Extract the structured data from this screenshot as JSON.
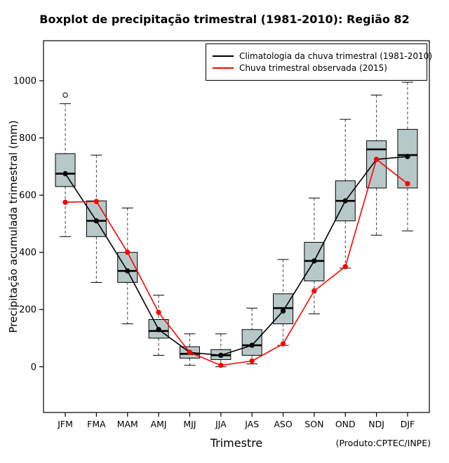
{
  "chart_data": {
    "type": "boxplot",
    "title": "Boxplot de precipitação trimestral (1981-2010): Região 82",
    "xlabel": "Trimestre",
    "ylabel": "Precipitação acumulada trimestral (mm)",
    "note": "(Produto:CPTEC/INPE)",
    "categories": [
      "JFM",
      "FMA",
      "MAM",
      "AMJ",
      "MJJ",
      "JJA",
      "JAS",
      "ASO",
      "SON",
      "OND",
      "NDJ",
      "DJF"
    ],
    "yticks": [
      0,
      200,
      400,
      600,
      800,
      1000
    ],
    "ylim": [
      -160,
      1140
    ],
    "box_fill": "#b7c8c8",
    "grid": false,
    "legend_position": "top-right",
    "boxes": [
      {
        "low": 455,
        "q1": 630,
        "median": 675,
        "q3": 745,
        "high": 920,
        "outliers": [
          950
        ]
      },
      {
        "low": 295,
        "q1": 455,
        "median": 510,
        "q3": 580,
        "high": 740,
        "outliers": []
      },
      {
        "low": 150,
        "q1": 295,
        "median": 335,
        "q3": 400,
        "high": 555,
        "outliers": []
      },
      {
        "low": 40,
        "q1": 100,
        "median": 125,
        "q3": 165,
        "high": 250,
        "outliers": []
      },
      {
        "low": 5,
        "q1": 30,
        "median": 45,
        "q3": 70,
        "high": 115,
        "outliers": []
      },
      {
        "low": 0,
        "q1": 25,
        "median": 40,
        "q3": 60,
        "high": 115,
        "outliers": []
      },
      {
        "low": 10,
        "q1": 40,
        "median": 75,
        "q3": 130,
        "high": 205,
        "outliers": []
      },
      {
        "low": 75,
        "q1": 150,
        "median": 205,
        "q3": 255,
        "high": 375,
        "outliers": []
      },
      {
        "low": 185,
        "q1": 300,
        "median": 370,
        "q3": 435,
        "high": 590,
        "outliers": []
      },
      {
        "low": 345,
        "q1": 510,
        "median": 580,
        "q3": 650,
        "high": 865,
        "outliers": []
      },
      {
        "low": 460,
        "q1": 625,
        "median": 760,
        "q3": 790,
        "high": 950,
        "outliers": []
      },
      {
        "low": 475,
        "q1": 625,
        "median": 740,
        "q3": 830,
        "high": 995,
        "outliers": []
      }
    ],
    "series": [
      {
        "name": "Climatologia da chuva trimestral (1981-2010)",
        "color": "#000000",
        "values": [
          675,
          510,
          335,
          130,
          50,
          40,
          75,
          195,
          370,
          580,
          725,
          735
        ]
      },
      {
        "name": "Chuva trimestral observada (2015)",
        "color": "#ff0000",
        "values": [
          575,
          578,
          400,
          190,
          50,
          5,
          20,
          80,
          265,
          350,
          725,
          640
        ]
      }
    ]
  }
}
